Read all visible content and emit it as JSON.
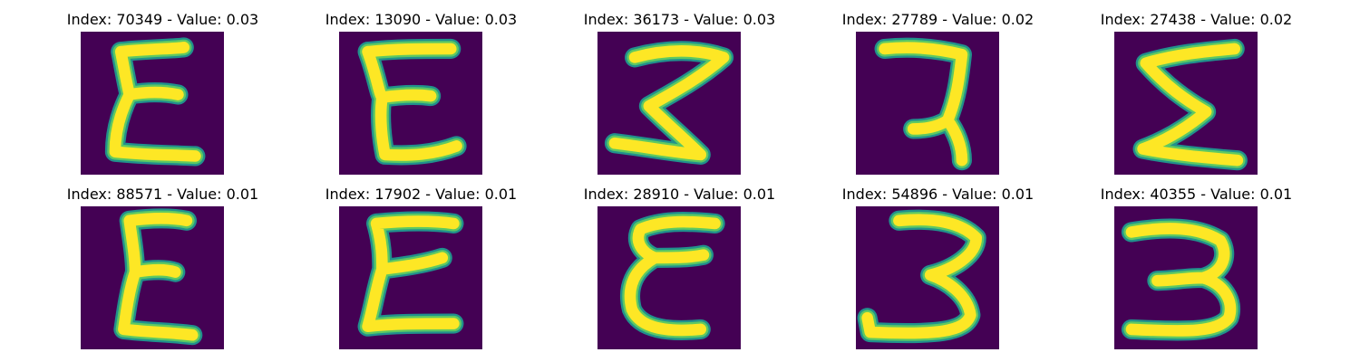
{
  "figure": {
    "background": "#440154",
    "stroke_colors": {
      "edge": "#21918c",
      "mid": "#5ec962",
      "core": "#fde725"
    },
    "items": [
      {
        "title": "Index: 70349 - Value: 0.03",
        "index": 70349,
        "value": 0.03,
        "glyph": "epsilon-tall"
      },
      {
        "title": "Index: 13090 - Value: 0.03",
        "index": 13090,
        "value": 0.03,
        "glyph": "e-block"
      },
      {
        "title": "Index: 36173 - Value: 0.03",
        "index": 36173,
        "value": 0.03,
        "glyph": "three-z"
      },
      {
        "title": "Index: 27789 - Value: 0.02",
        "index": 27789,
        "value": 0.02,
        "glyph": "seven-bar"
      },
      {
        "title": "Index: 27438 - Value: 0.02",
        "index": 27438,
        "value": 0.02,
        "glyph": "sigma"
      },
      {
        "title": "Index: 88571 - Value: 0.01",
        "index": 88571,
        "value": 0.01,
        "glyph": "epsilon-bold"
      },
      {
        "title": "Index: 17902 - Value: 0.01",
        "index": 17902,
        "value": 0.01,
        "glyph": "epsilon-loop"
      },
      {
        "title": "Index: 28910 - Value: 0.01",
        "index": 28910,
        "value": 0.01,
        "glyph": "epsilon-round"
      },
      {
        "title": "Index: 54896 - Value: 0.01",
        "index": 54896,
        "value": 0.01,
        "glyph": "three-open"
      },
      {
        "title": "Index: 40355 - Value: 0.01",
        "index": 40355,
        "value": 0.01,
        "glyph": "three-round"
      }
    ]
  }
}
